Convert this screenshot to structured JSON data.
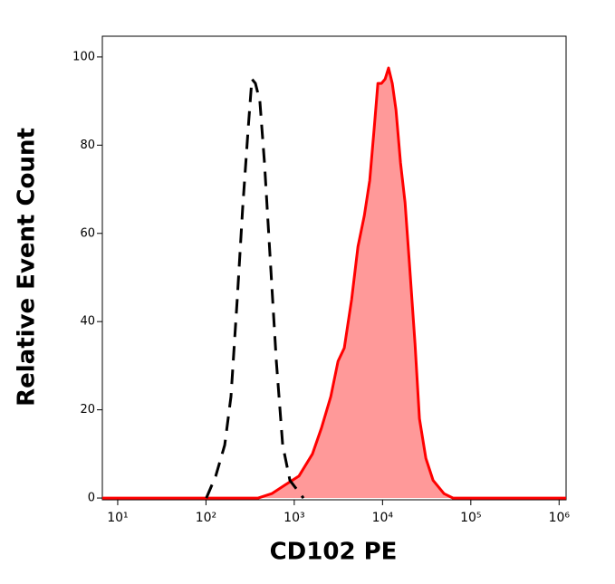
{
  "chart_data": {
    "type": "line",
    "x_label": "CD102 PE",
    "y_label": "Relative Event Count",
    "xscale": "log",
    "xlim": [
      6.7,
      1200000
    ],
    "xticks": [
      {
        "value": 10,
        "label": "10¹"
      },
      {
        "value": 100,
        "label": "10²"
      },
      {
        "value": 1000,
        "label": "10³"
      },
      {
        "value": 10000,
        "label": "10⁴"
      },
      {
        "value": 100000,
        "label": "10⁵"
      },
      {
        "value": 1000000,
        "label": "10⁶"
      }
    ],
    "ylim": [
      -0.4,
      104.7
    ],
    "yticks": [
      0,
      20,
      40,
      60,
      80,
      100
    ],
    "series": [
      {
        "color": "#000000",
        "dashed": true,
        "filled": false,
        "x": [
          101,
          129,
          163,
          192,
          226,
          261,
          301,
          331,
          363,
          408,
          460,
          531,
          627,
          740,
          893,
          1270
        ],
        "values": [
          0,
          5,
          12,
          23,
          45,
          66,
          84,
          95,
          94,
          90,
          76,
          55,
          31,
          12,
          4,
          0
        ]
      },
      {
        "color": "#ff0000",
        "fill": "#ff9999",
        "dashed": false,
        "filled": true,
        "x": [
          6.7,
          390,
          556,
          793,
          1130,
          1610,
          2040,
          2590,
          3130,
          3690,
          4460,
          5260,
          6210,
          7160,
          8060,
          8860,
          9730,
          10700,
          11700,
          12900,
          14200,
          16000,
          18000,
          20200,
          23300,
          26200,
          31000,
          37400,
          49700,
          62900,
          1200000
        ],
        "values": [
          0,
          0,
          1,
          3,
          5,
          10,
          16,
          23,
          31,
          34,
          45,
          57,
          64,
          72,
          84,
          94,
          94,
          95,
          97.5,
          94,
          88,
          76,
          67,
          53,
          35,
          18,
          9,
          4,
          1,
          0,
          0
        ]
      }
    ]
  }
}
